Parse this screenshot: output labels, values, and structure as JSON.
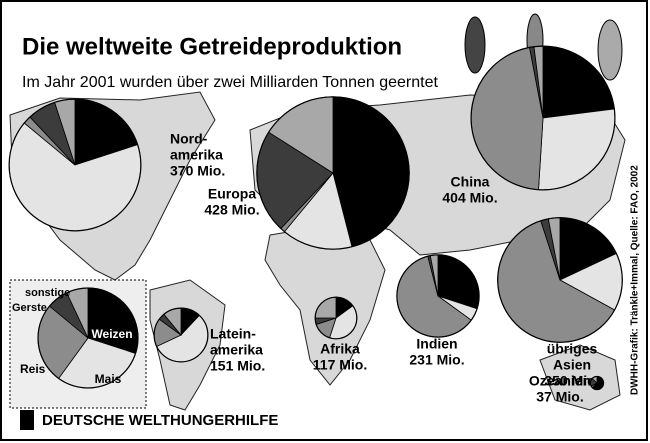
{
  "chart_data": {
    "type": "pie",
    "title": "Die weltweite Getreideproduktion",
    "subtitle": "Im Jahr 2001 wurden über zwei Milliarden Tonnen geerntet",
    "source": "DWHH-Grafik: Tränkle+Immal, Quelle: FAO, 2002",
    "footer": "DEUTSCHE WELTHUNGERHILFE",
    "categories": [
      "Weizen",
      "Mais",
      "Reis",
      "Gerste",
      "sonstige"
    ],
    "colors": [
      "#000000",
      "#e4e4e4",
      "#8c8c8c",
      "#3c3c3c",
      "#a8a8a8"
    ],
    "legend": {
      "categories": [
        "Weizen",
        "Mais",
        "Reis",
        "Gerste",
        "sonstige"
      ],
      "values": [
        30,
        30,
        26,
        7,
        7
      ]
    },
    "pies": [
      {
        "name": [
          "Nord-",
          "amerika"
        ],
        "value": 370,
        "value_label": "370 Mio.",
        "values": [
          20,
          66,
          2,
          7,
          5
        ]
      },
      {
        "name": [
          "Europa"
        ],
        "value": 428,
        "value_label": "428 Mio.",
        "values": [
          46,
          15,
          1,
          22,
          16
        ]
      },
      {
        "name": [
          "China"
        ],
        "value": 404,
        "value_label": "404 Mio.",
        "values": [
          23,
          28,
          46,
          1,
          2
        ]
      },
      {
        "name": [
          "Latein-",
          "amerika"
        ],
        "value": 151,
        "value_label": "151 Mio.",
        "values": [
          12,
          56,
          17,
          4,
          11
        ]
      },
      {
        "name": [
          "Afrika"
        ],
        "value": 117,
        "value_label": "117 Mio.",
        "values": [
          15,
          40,
          15,
          5,
          25
        ]
      },
      {
        "name": [
          "Indien"
        ],
        "value": 231,
        "value_label": "231 Mio.",
        "values": [
          30,
          5,
          61,
          1,
          3
        ]
      },
      {
        "name": [
          "übriges",
          "Asien"
        ],
        "value": 350,
        "value_label": "350 Mio.",
        "values": [
          18,
          15,
          62,
          2,
          3
        ]
      },
      {
        "name": [
          "Ozeanien"
        ],
        "value": 37,
        "value_label": "37 Mio.",
        "values": [
          60,
          2,
          5,
          20,
          13
        ]
      }
    ]
  }
}
